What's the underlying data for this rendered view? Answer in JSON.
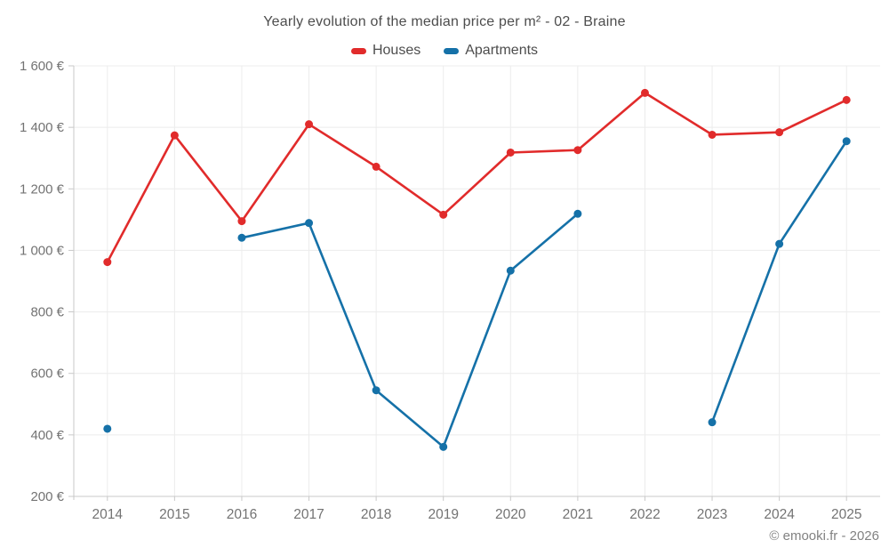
{
  "title": "Yearly evolution of the median price per m² - 02 - Braine",
  "footer": "© emooki.fr - 2026",
  "colors": {
    "houses": "#e12b2b",
    "apartments": "#1571a8",
    "grid": "#ececec",
    "axis": "#c9c9c9",
    "tick_label": "#737373",
    "title_text": "#4d4d4d",
    "footer_text": "#828282"
  },
  "chart_data": {
    "type": "line",
    "title": "Yearly evolution of the median price per m² - 02 - Braine",
    "x": [
      2014,
      2015,
      2016,
      2017,
      2018,
      2019,
      2020,
      2021,
      2022,
      2023,
      2024,
      2025
    ],
    "series": [
      {
        "name": "Houses",
        "color": "#e12b2b",
        "values": [
          962,
          1374,
          1095,
          1410,
          1272,
          1116,
          1318,
          1326,
          1512,
          1376,
          1384,
          1489
        ]
      },
      {
        "name": "Apartments",
        "color": "#1571a8",
        "values": [
          420,
          null,
          1041,
          1089,
          545,
          361,
          934,
          1119,
          null,
          441,
          1021,
          1355
        ]
      }
    ],
    "xlabel": "",
    "ylabel": "",
    "ylim": [
      200,
      1600
    ],
    "ytick_step": 200,
    "ytick_suffix": " €",
    "grid": true,
    "legend_position": "top",
    "marker": "circle",
    "gaps_not_connected": true
  }
}
